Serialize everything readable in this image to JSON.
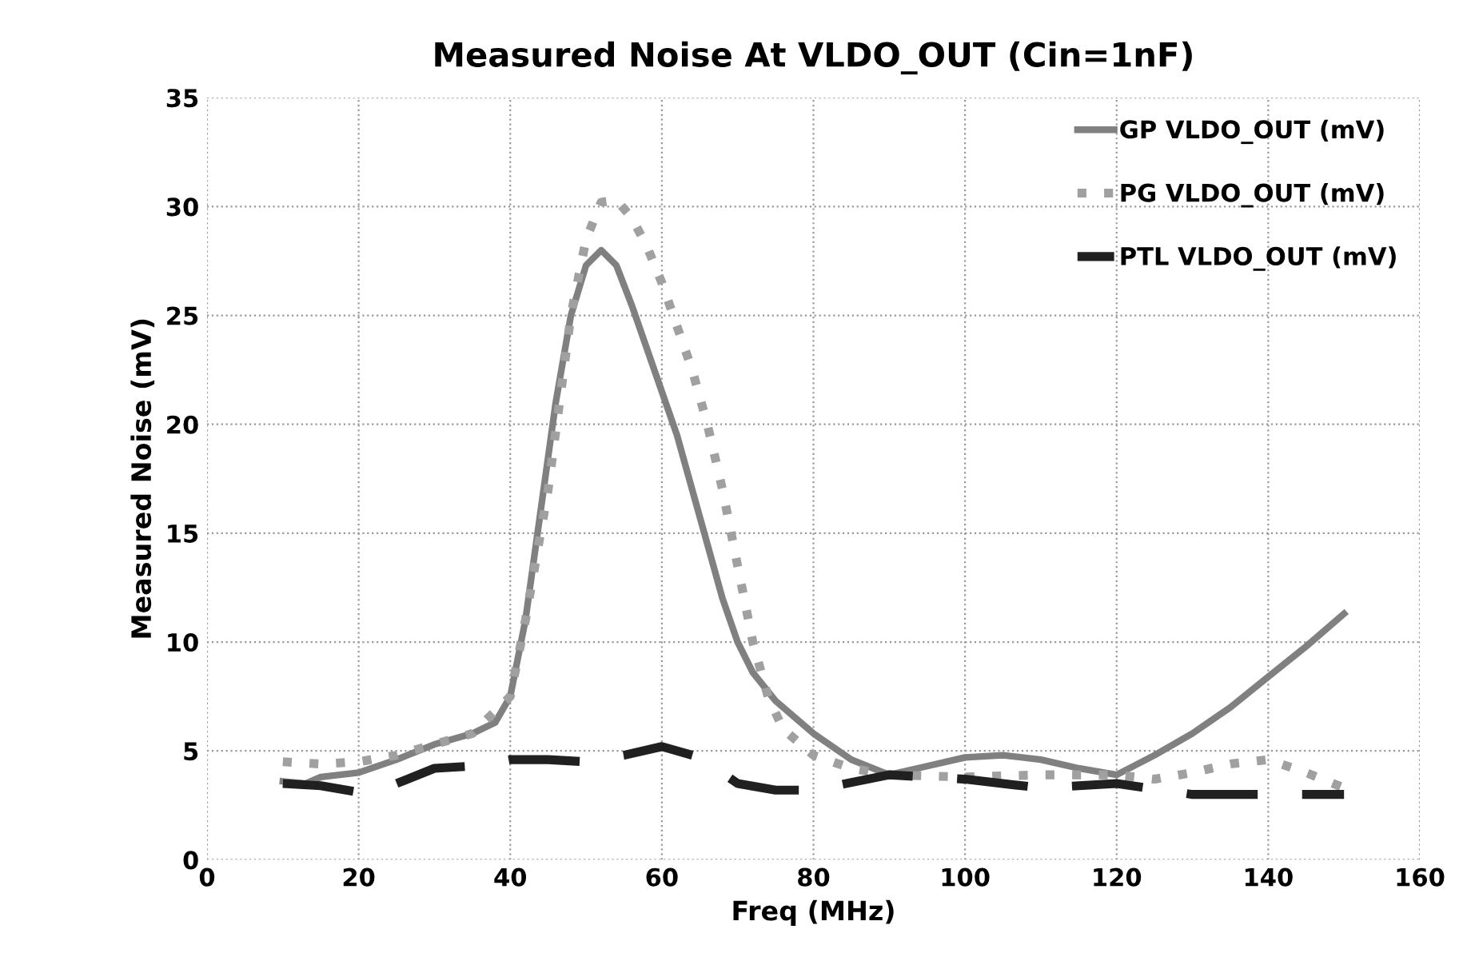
{
  "chart_data": {
    "type": "line",
    "title": "Measured Noise At VLDO_OUT (Cin=1nF)",
    "xlabel": "Freq (MHz)",
    "ylabel": "Measured Noise (mV)",
    "xlim": [
      0,
      160
    ],
    "xticks": [
      0,
      20,
      40,
      60,
      80,
      100,
      120,
      140,
      160
    ],
    "ylim": [
      0,
      35
    ],
    "yticks": [
      0,
      5,
      10,
      15,
      20,
      25,
      30,
      35
    ],
    "grid": true,
    "legend": "top right",
    "series": [
      {
        "name": "GP VLDO_OUT (mV)",
        "color": "#808080",
        "line_style": "solid",
        "x": [
          10,
          13,
          15,
          20,
          25,
          30,
          35,
          38,
          40,
          42,
          44,
          46,
          48,
          50,
          52,
          54,
          56,
          58,
          60,
          62,
          64,
          66,
          68,
          70,
          72,
          75,
          80,
          85,
          90,
          95,
          100,
          105,
          110,
          115,
          120,
          125,
          130,
          135,
          140,
          145,
          150
        ],
        "values": [
          3.6,
          3.5,
          3.8,
          4.0,
          4.6,
          5.3,
          5.8,
          6.3,
          7.5,
          11,
          16,
          21,
          25,
          27.3,
          28,
          27.3,
          25.5,
          23.5,
          21.5,
          19.5,
          17,
          14.5,
          12,
          10,
          8.6,
          7.3,
          5.8,
          4.6,
          3.9,
          4.3,
          4.7,
          4.8,
          4.6,
          4.2,
          3.9,
          4.8,
          5.8,
          7.0,
          8.4,
          9.8,
          11.3
        ]
      },
      {
        "name": "PG VLDO_OUT (mV)",
        "color": "#a0a0a0",
        "line_style": "dotted",
        "x": [
          10,
          15,
          20,
          25,
          30,
          35,
          40,
          42,
          45,
          48,
          50,
          52,
          54,
          56,
          58,
          60,
          62,
          64,
          66,
          68,
          70,
          72,
          74,
          76,
          80,
          85,
          90,
          100,
          110,
          120,
          125,
          130,
          135,
          140,
          145,
          150
        ],
        "values": [
          4.5,
          4.4,
          4.5,
          4.8,
          5.3,
          5.8,
          7.5,
          11,
          17,
          25,
          28.5,
          30.2,
          30.3,
          29.5,
          28.2,
          26.5,
          24.5,
          22.5,
          20,
          17,
          13.5,
          10,
          7.5,
          6,
          4.8,
          4.2,
          3.9,
          3.8,
          3.9,
          3.9,
          3.7,
          4.0,
          4.4,
          4.6,
          4.0,
          3.3
        ]
      },
      {
        "name": "PTL VLDO_OUT (mV)",
        "color": "#202020",
        "line_style": "dashed",
        "x": [
          10,
          15,
          20,
          25,
          30,
          35,
          40,
          45,
          50,
          55,
          60,
          65,
          70,
          75,
          80,
          90,
          100,
          110,
          120,
          130,
          140,
          150
        ],
        "values": [
          3.5,
          3.4,
          3.1,
          3.5,
          4.2,
          4.3,
          4.6,
          4.6,
          4.5,
          4.8,
          5.2,
          4.7,
          3.5,
          3.2,
          3.2,
          3.9,
          3.7,
          3.3,
          3.5,
          3.0,
          3.0,
          3.0
        ]
      }
    ]
  }
}
